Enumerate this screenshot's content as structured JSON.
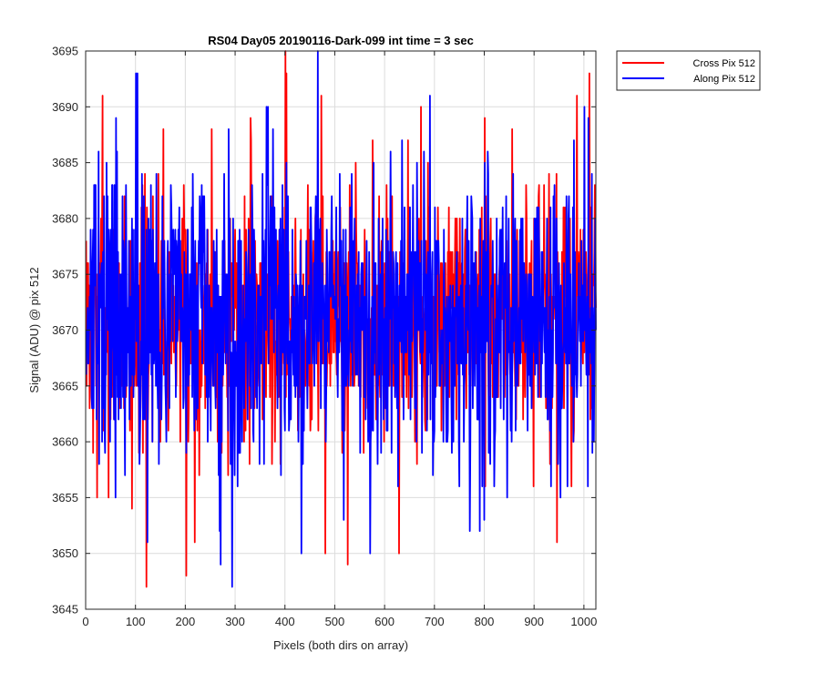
{
  "chart_data": {
    "type": "line",
    "title": "RS04 Day05 20190116-Dark-099 int time = 3 sec",
    "xlabel": "Pixels (both dirs on array)",
    "ylabel": "Signal (ADU) @ pix 512",
    "xlim": [
      0,
      1024
    ],
    "ylim": [
      3645,
      3695
    ],
    "xticks": [
      0,
      100,
      200,
      300,
      400,
      500,
      600,
      700,
      800,
      900,
      1000
    ],
    "yticks": [
      3645,
      3650,
      3655,
      3660,
      3665,
      3670,
      3675,
      3680,
      3685,
      3690,
      3695
    ],
    "grid": true,
    "legend_position": "outside-top-right",
    "n_points": 1024,
    "series": [
      {
        "name": "Cross Pix 512",
        "color": "#ff0000",
        "mean": 3671,
        "spread": 5.5,
        "seed": 7,
        "spikes": [
          {
            "x": 33,
            "y": 3691
          },
          {
            "x": 22,
            "y": 3655
          },
          {
            "x": 45,
            "y": 3655
          },
          {
            "x": 92,
            "y": 3654
          },
          {
            "x": 121,
            "y": 3647
          },
          {
            "x": 155,
            "y": 3688
          },
          {
            "x": 201,
            "y": 3648
          },
          {
            "x": 218,
            "y": 3651
          },
          {
            "x": 252,
            "y": 3688
          },
          {
            "x": 330,
            "y": 3689
          },
          {
            "x": 400,
            "y": 3695
          },
          {
            "x": 402,
            "y": 3693
          },
          {
            "x": 472,
            "y": 3691
          },
          {
            "x": 480,
            "y": 3650
          },
          {
            "x": 525,
            "y": 3649
          },
          {
            "x": 575,
            "y": 3687
          },
          {
            "x": 628,
            "y": 3650
          },
          {
            "x": 672,
            "y": 3690
          },
          {
            "x": 800,
            "y": 3689
          },
          {
            "x": 855,
            "y": 3688
          },
          {
            "x": 945,
            "y": 3651
          },
          {
            "x": 985,
            "y": 3691
          },
          {
            "x": 1010,
            "y": 3693
          }
        ]
      },
      {
        "name": "Along Pix 512",
        "color": "#0000ff",
        "mean": 3671,
        "spread": 6.5,
        "seed": 13,
        "spikes": [
          {
            "x": 25,
            "y": 3686
          },
          {
            "x": 100,
            "y": 3693
          },
          {
            "x": 103,
            "y": 3693
          },
          {
            "x": 60,
            "y": 3689
          },
          {
            "x": 123,
            "y": 3651
          },
          {
            "x": 270,
            "y": 3649
          },
          {
            "x": 268,
            "y": 3652
          },
          {
            "x": 293,
            "y": 3647
          },
          {
            "x": 362,
            "y": 3690
          },
          {
            "x": 365,
            "y": 3690
          },
          {
            "x": 432,
            "y": 3650
          },
          {
            "x": 465,
            "y": 3695
          },
          {
            "x": 570,
            "y": 3650
          },
          {
            "x": 690,
            "y": 3691
          },
          {
            "x": 770,
            "y": 3652
          },
          {
            "x": 790,
            "y": 3652
          },
          {
            "x": 845,
            "y": 3655
          },
          {
            "x": 952,
            "y": 3655
          },
          {
            "x": 1000,
            "y": 3690
          },
          {
            "x": 1008,
            "y": 3689
          }
        ]
      }
    ]
  }
}
